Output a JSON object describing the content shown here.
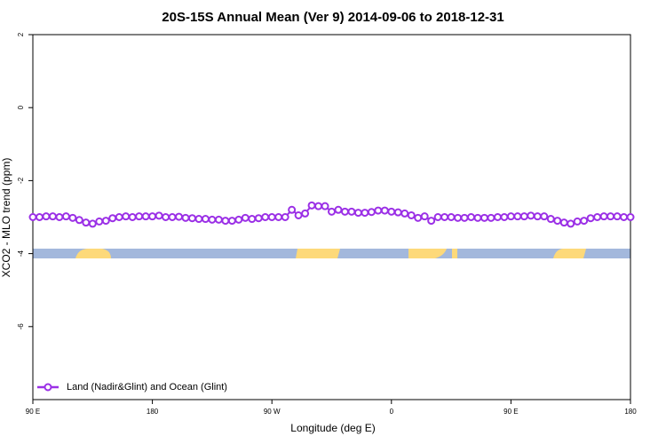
{
  "chart_data": {
    "type": "line",
    "title": "20S-15S Annual Mean (Ver 9)   2014-09-06 to 2018-12-31",
    "x_label": "Longitude (deg E)",
    "y_label": "XCO2 - MLO trend (ppm)",
    "xlim": [
      90,
      540
    ],
    "ylim": [
      -8,
      2
    ],
    "xticks": [
      {
        "value": 90,
        "label": "90 E"
      },
      180,
      {
        "value": 270,
        "label": "90 W"
      },
      {
        "value": 360,
        "label": "0"
      },
      {
        "value": 450,
        "label": "90 E"
      },
      180
    ],
    "yticks": [
      2,
      0,
      -2,
      -4,
      -6
    ],
    "legend": "bottom-left",
    "x": [
      90,
      95,
      100,
      105,
      110,
      115,
      120,
      125,
      130,
      135,
      140,
      145,
      150,
      155,
      160,
      165,
      170,
      175,
      180,
      185,
      190,
      195,
      200,
      205,
      210,
      215,
      220,
      225,
      230,
      235,
      240,
      245,
      250,
      255,
      260,
      265,
      270,
      275,
      280,
      285,
      290,
      295,
      300,
      305,
      310,
      315,
      320,
      325,
      330,
      335,
      340,
      345,
      350,
      355,
      360,
      365,
      370,
      375,
      380,
      385,
      390,
      395,
      400,
      405,
      410,
      415,
      420,
      425,
      430,
      435,
      440,
      445,
      450,
      455,
      460,
      465,
      470,
      475,
      480,
      485,
      490,
      495,
      500,
      505,
      510,
      515,
      520,
      525,
      530,
      535,
      540
    ],
    "series": [
      {
        "name": "Land (Nadir&Glint) and Ocean (Glint)",
        "color": "#9b30e6",
        "values": [
          -3.0,
          -3.0,
          -2.98,
          -2.98,
          -3.0,
          -2.98,
          -3.02,
          -3.08,
          -3.15,
          -3.18,
          -3.12,
          -3.1,
          -3.03,
          -3.0,
          -2.98,
          -3.0,
          -2.98,
          -2.98,
          -2.98,
          -2.96,
          -3.0,
          -3.0,
          -2.99,
          -3.02,
          -3.03,
          -3.05,
          -3.05,
          -3.07,
          -3.07,
          -3.1,
          -3.1,
          -3.07,
          -3.02,
          -3.05,
          -3.03,
          -3.0,
          -3.0,
          -3.0,
          -3.0,
          -2.8,
          -2.95,
          -2.9,
          -2.68,
          -2.7,
          -2.7,
          -2.85,
          -2.8,
          -2.85,
          -2.85,
          -2.88,
          -2.88,
          -2.86,
          -2.82,
          -2.82,
          -2.85,
          -2.87,
          -2.9,
          -2.95,
          -3.02,
          -2.98,
          -3.1,
          -3.0,
          -3.0,
          -3.0,
          -3.02,
          -3.02,
          -3.0,
          -3.02,
          -3.02,
          -3.02,
          -3.0,
          -3.0,
          -2.98,
          -2.98,
          -2.98,
          -2.96,
          -2.98,
          -2.98,
          -3.05,
          -3.1,
          -3.15,
          -3.18,
          -3.12,
          -3.1,
          -3.03,
          -3.0,
          -2.98,
          -2.98,
          -2.98,
          -3.0,
          -3.0
        ]
      }
    ]
  }
}
